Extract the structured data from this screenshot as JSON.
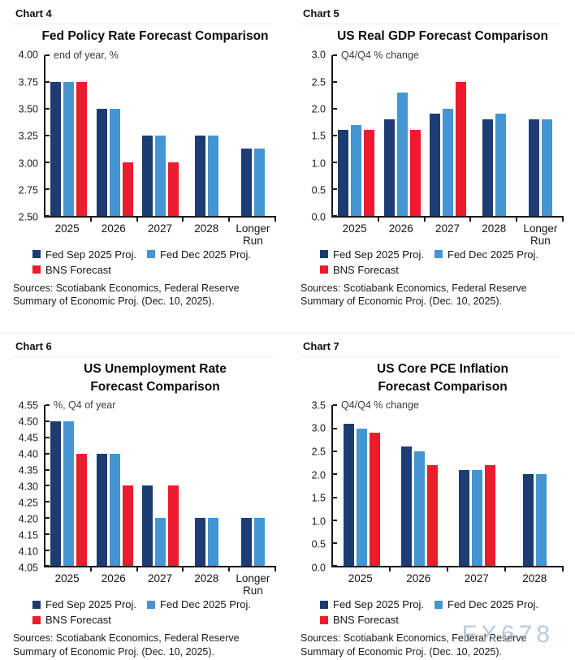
{
  "colors": {
    "fed_sep_2025": "#1d3c73",
    "fed_dec_2025": "#4495d1",
    "bns": "#ec1b2d",
    "axis": "#1a1a1a",
    "watermark": "#a4becd"
  },
  "watermark": "FX678",
  "chart_data": [
    {
      "type": "bar",
      "label": "Chart 4",
      "title": "Fed Policy Rate Forecast Comparison",
      "subtitle": "end of year, %",
      "ylim": [
        2.5,
        4.0
      ],
      "yticks": [
        "4.00",
        "3.75",
        "3.50",
        "3.25",
        "3.00",
        "2.75",
        "2.50"
      ],
      "categories": [
        "2025",
        "2026",
        "2027",
        "2028",
        "Longer Run"
      ],
      "series": [
        {
          "name": "Fed Sep 2025 Proj.",
          "color": "fed_sep_2025",
          "values": [
            3.75,
            3.5,
            3.25,
            3.25,
            3.13
          ]
        },
        {
          "name": "Fed Dec 2025 Proj.",
          "color": "fed_dec_2025",
          "values": [
            3.75,
            3.5,
            3.25,
            3.25,
            3.13
          ]
        },
        {
          "name": "BNS Forecast",
          "color": "bns",
          "values": [
            3.75,
            3.0,
            3.0,
            null,
            null
          ]
        }
      ],
      "grid": false,
      "legend_position": "bottom",
      "sources": "Sources: Scotiabank Economics, Federal Reserve\nSummary of Economic Proj. (Dec. 10, 2025)."
    },
    {
      "type": "bar",
      "label": "Chart 5",
      "title": "US Real GDP Forecast Comparison",
      "subtitle": "Q4/Q4 % change",
      "ylim": [
        0.0,
        3.0
      ],
      "yticks": [
        "3.0",
        "2.5",
        "2.0",
        "1.5",
        "1.0",
        "0.5",
        "0.0"
      ],
      "categories": [
        "2025",
        "2026",
        "2027",
        "2028",
        "Longer Run"
      ],
      "series": [
        {
          "name": "Fed Sep 2025 Proj.",
          "color": "fed_sep_2025",
          "values": [
            1.6,
            1.8,
            1.9,
            1.8,
            1.8
          ]
        },
        {
          "name": "Fed Dec 2025 Proj.",
          "color": "fed_dec_2025",
          "values": [
            1.7,
            2.3,
            2.0,
            1.9,
            1.8
          ]
        },
        {
          "name": "BNS Forecast",
          "color": "bns",
          "values": [
            1.6,
            1.6,
            2.5,
            null,
            null
          ]
        }
      ],
      "grid": false,
      "legend_position": "bottom",
      "sources": "Sources: Scotiabank Economics, Federal Reserve\nSummary of Economic Proj. (Dec. 10, 2025)."
    },
    {
      "type": "bar",
      "label": "Chart 6",
      "title": "US Unemployment Rate\nForecast Comparison",
      "subtitle": "%, Q4 of year",
      "ylim": [
        4.05,
        4.55
      ],
      "yticks": [
        "4.55",
        "4.50",
        "4.45",
        "4.40",
        "4.35",
        "4.30",
        "4.25",
        "4.20",
        "4.15",
        "4.10",
        "4.05"
      ],
      "categories": [
        "2025",
        "2026",
        "2027",
        "2028",
        "Longer Run"
      ],
      "series": [
        {
          "name": "Fed Sep 2025 Proj.",
          "color": "fed_sep_2025",
          "values": [
            4.5,
            4.4,
            4.3,
            4.2,
            4.2
          ]
        },
        {
          "name": "Fed Dec 2025 Proj.",
          "color": "fed_dec_2025",
          "values": [
            4.5,
            4.4,
            4.2,
            4.2,
            4.2
          ]
        },
        {
          "name": "BNS Forecast",
          "color": "bns",
          "values": [
            4.4,
            4.3,
            4.3,
            null,
            null
          ]
        }
      ],
      "grid": false,
      "legend_position": "bottom",
      "sources": "Sources: Scotiabank Economics, Federal Reserve\nSummary of Economic Proj. (Dec. 10, 2025)."
    },
    {
      "type": "bar",
      "label": "Chart 7",
      "title": "US Core PCE Inflation\nForecast Comparison",
      "subtitle": "Q4/Q4 % change",
      "ylim": [
        0.0,
        3.5
      ],
      "yticks": [
        "3.5",
        "3.0",
        "2.5",
        "2.0",
        "1.5",
        "1.0",
        "0.5",
        "0.0"
      ],
      "categories": [
        "2025",
        "2026",
        "2027",
        "2028"
      ],
      "series": [
        {
          "name": "Fed Sep 2025 Proj.",
          "color": "fed_sep_2025",
          "values": [
            3.1,
            2.6,
            2.1,
            2.0
          ]
        },
        {
          "name": "Fed Dec 2025 Proj.",
          "color": "fed_dec_2025",
          "values": [
            3.0,
            2.5,
            2.1,
            2.0
          ]
        },
        {
          "name": "BNS Forecast",
          "color": "bns",
          "values": [
            2.9,
            2.2,
            2.2,
            null
          ]
        }
      ],
      "grid": false,
      "legend_position": "bottom",
      "sources": "Sources: Scotiabank Economics, Federal Reserve\nSummary of Economic Proj. (Dec. 10, 2025)."
    }
  ]
}
